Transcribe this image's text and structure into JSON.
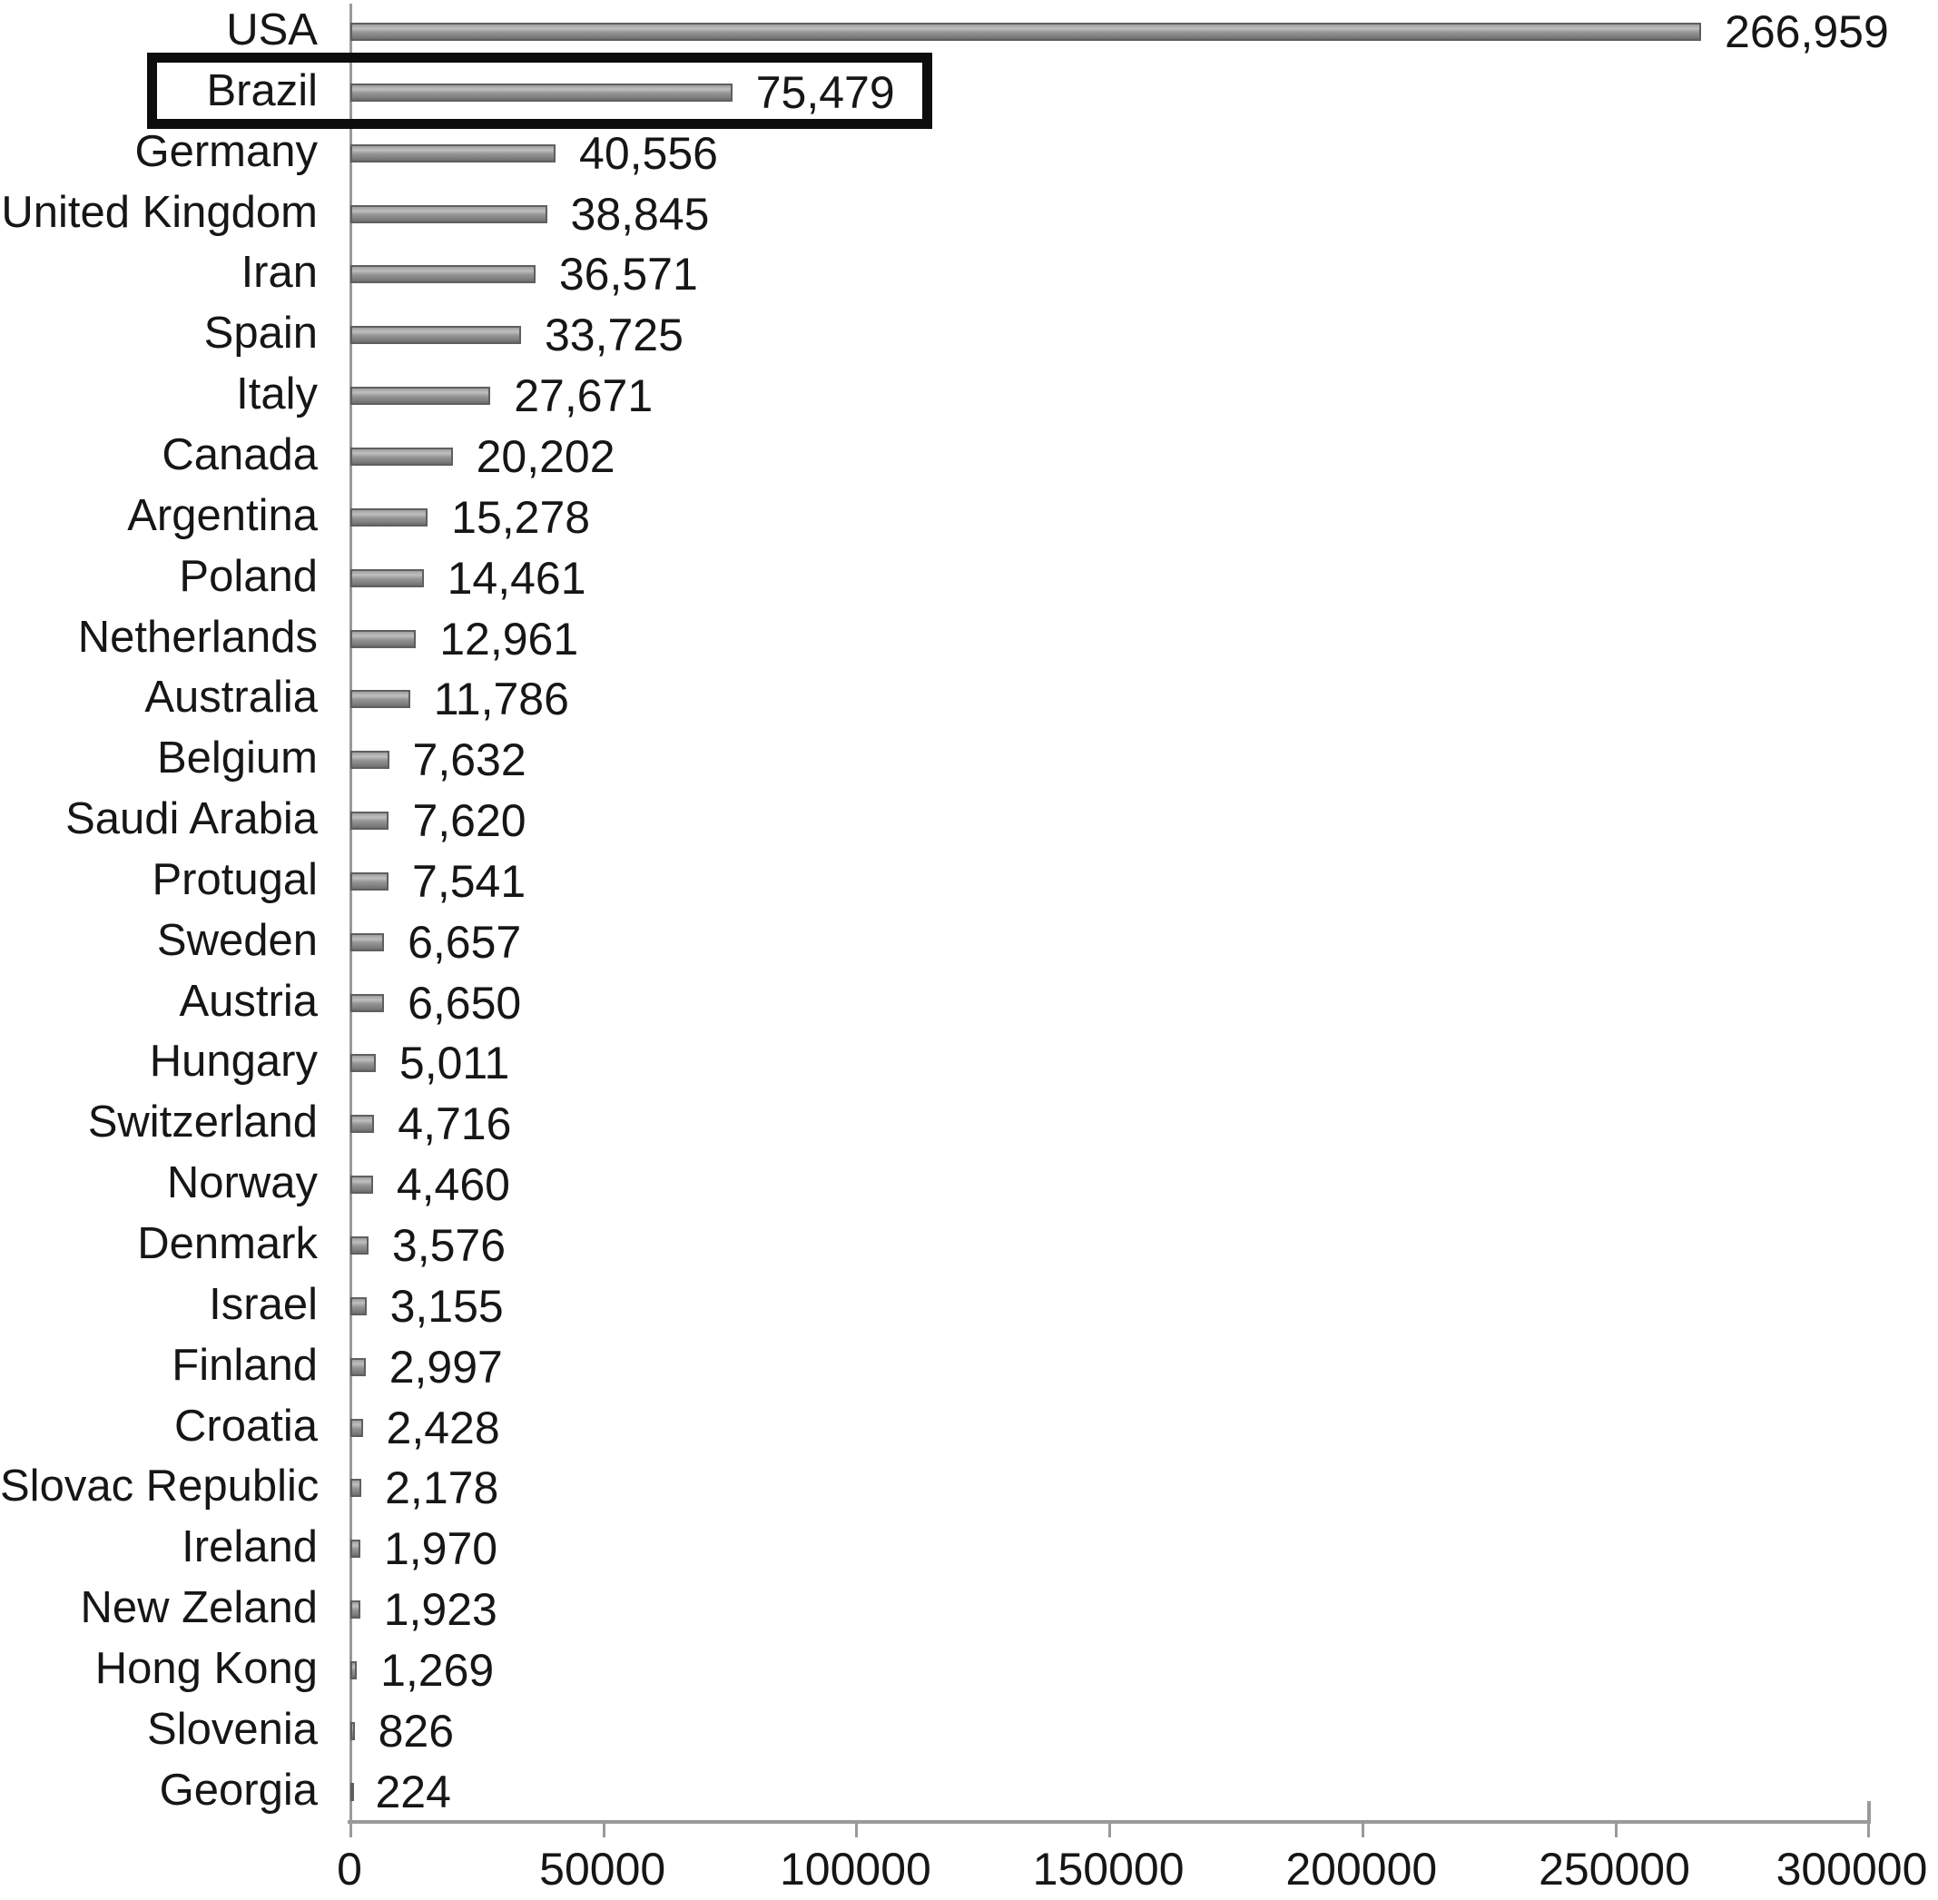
{
  "chart_data": {
    "type": "bar",
    "orientation": "horizontal",
    "title": "",
    "xlabel": "",
    "ylabel": "",
    "grid": false,
    "legend": false,
    "xlim": [
      0,
      300000
    ],
    "x_ticks": [
      0,
      50000,
      100000,
      150000,
      200000,
      250000,
      300000
    ],
    "x_tick_labels": [
      "0",
      "50000",
      "100000",
      "150000",
      "200000",
      "250000",
      "300000"
    ],
    "categories": [
      "USA",
      "Brazil",
      "Germany",
      "United Kingdom",
      "Iran",
      "Spain",
      "Italy",
      "Canada",
      "Argentina",
      "Poland",
      "Netherlands",
      "Australia",
      "Belgium",
      "Saudi Arabia",
      "Protugal",
      "Sweden",
      "Austria",
      "Hungary",
      "Switzerland",
      "Norway",
      "Denmark",
      "Israel",
      "Finland",
      "Croatia",
      "Slovac Republic",
      "Ireland",
      "New Zeland",
      "Hong Kong",
      "Slovenia",
      "Georgia"
    ],
    "values": [
      266959,
      75479,
      40556,
      38845,
      36571,
      33725,
      27671,
      20202,
      15278,
      14461,
      12961,
      11786,
      7632,
      7620,
      7541,
      6657,
      6650,
      5011,
      4716,
      4460,
      3576,
      3155,
      2997,
      2428,
      2178,
      1970,
      1923,
      1269,
      826,
      224
    ],
    "value_labels": [
      "266,959",
      "75,479",
      "40,556",
      "38,845",
      "36,571",
      "33,725",
      "27,671",
      "20,202",
      "15,278",
      "14,461",
      "12,961",
      "11,786",
      "7,632",
      "7,620",
      "7,541",
      "6,657",
      "6,650",
      "5,011",
      "4,716",
      "4,460",
      "3,576",
      "3,155",
      "2,997",
      "2,428",
      "2,178",
      "1,970",
      "1,923",
      "1,269",
      "826",
      "224"
    ],
    "highlighted_category": "Brazil",
    "colors": {
      "bar_fill": "#8f8f8f",
      "bar_border": "#5f5f5f",
      "axis": "#9a9a9a",
      "text": "#161616",
      "highlight_border": "#0d0d0d",
      "background": "#ffffff"
    }
  }
}
